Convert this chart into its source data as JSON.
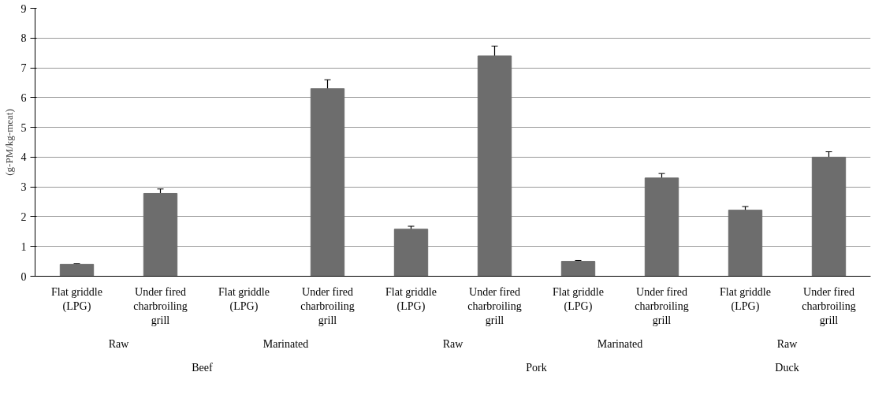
{
  "chart_data": {
    "type": "bar",
    "ylabel": "(g-PM/kg-meat)",
    "categories": [
      [
        "Beef",
        "Raw",
        "Flat griddle (LPG)"
      ],
      [
        null,
        null,
        "Under fired charbroiling grill"
      ],
      [
        null,
        "Marinated",
        "Flat griddle (LPG)"
      ],
      [
        null,
        null,
        "Under fired charbroiling grill"
      ],
      [
        "Pork",
        "Raw",
        "Flat griddle (LPG)"
      ],
      [
        null,
        null,
        "Under fired charbroiling grill"
      ],
      [
        null,
        "Marinated",
        "Flat griddle (LPG)"
      ],
      [
        null,
        null,
        "Under fired charbroiling grill"
      ],
      [
        "Duck",
        "Raw",
        "Flat griddle (LPG)"
      ],
      [
        null,
        null,
        "Under fired charbroiling grill"
      ]
    ],
    "values": [
      0.4,
      2.78,
      null,
      6.3,
      1.58,
      7.4,
      0.5,
      3.3,
      2.22,
      4.0
    ],
    "errors": [
      0.02,
      0.15,
      null,
      0.3,
      0.1,
      0.33,
      0.03,
      0.15,
      0.12,
      0.18
    ],
    "color": "#6d6d6d",
    "ylim": [
      0,
      9
    ],
    "yticks": [
      0,
      1,
      2,
      3,
      4,
      5,
      6,
      7,
      8,
      9
    ],
    "grid": "y"
  }
}
